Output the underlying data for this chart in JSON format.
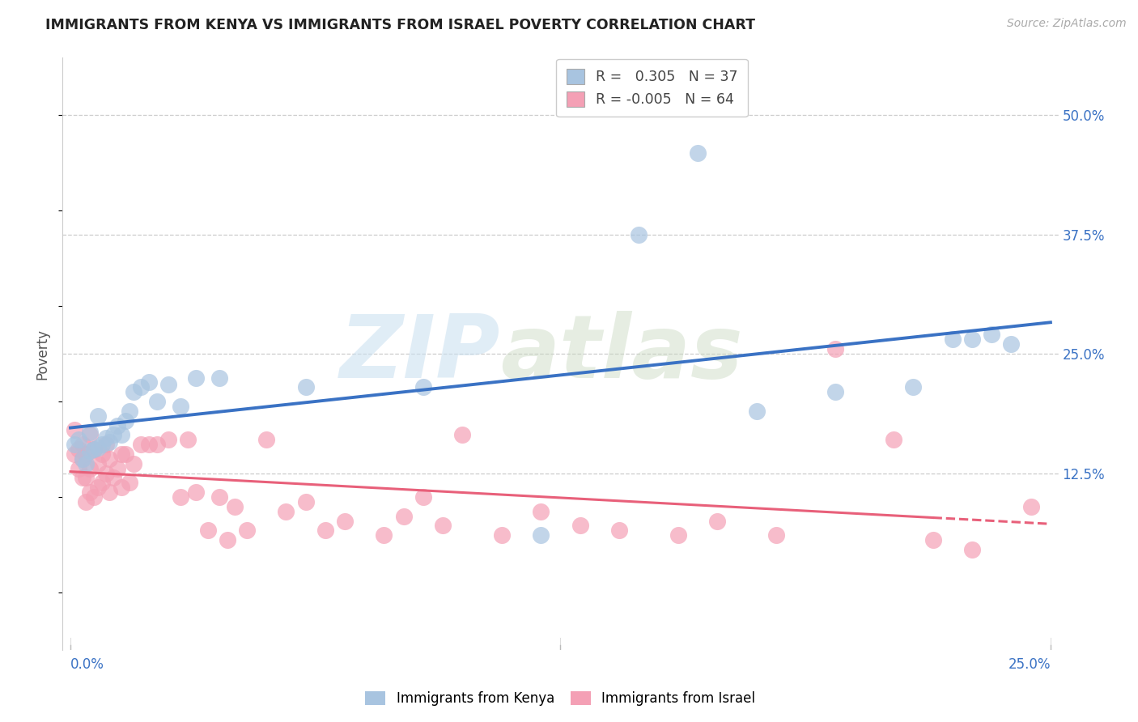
{
  "title": "IMMIGRANTS FROM KENYA VS IMMIGRANTS FROM ISRAEL POVERTY CORRELATION CHART",
  "source": "Source: ZipAtlas.com",
  "ylabel": "Poverty",
  "ytick_labels": [
    "50.0%",
    "37.5%",
    "25.0%",
    "12.5%"
  ],
  "ytick_values": [
    0.5,
    0.375,
    0.25,
    0.125
  ],
  "xlim": [
    0.0,
    0.25
  ],
  "ylim": [
    -0.06,
    0.56
  ],
  "legend_r_kenya": " 0.305",
  "legend_n_kenya": "37",
  "legend_r_israel": "-0.005",
  "legend_n_israel": "64",
  "kenya_color": "#a8c4e0",
  "israel_color": "#f4a0b5",
  "kenya_line_color": "#3a72c4",
  "israel_line_color": "#e8607a",
  "background_color": "#ffffff",
  "grid_color": "#cccccc",
  "kenya_x": [
    0.001,
    0.002,
    0.003,
    0.004,
    0.005,
    0.005,
    0.006,
    0.007,
    0.007,
    0.008,
    0.009,
    0.01,
    0.011,
    0.012,
    0.013,
    0.014,
    0.015,
    0.016,
    0.018,
    0.02,
    0.022,
    0.025,
    0.028,
    0.032,
    0.038,
    0.06,
    0.09,
    0.12,
    0.145,
    0.16,
    0.175,
    0.195,
    0.215,
    0.225,
    0.23,
    0.235,
    0.24
  ],
  "kenya_y": [
    0.155,
    0.16,
    0.14,
    0.135,
    0.148,
    0.168,
    0.15,
    0.152,
    0.185,
    0.155,
    0.162,
    0.158,
    0.165,
    0.175,
    0.165,
    0.18,
    0.19,
    0.21,
    0.215,
    0.22,
    0.2,
    0.218,
    0.195,
    0.225,
    0.225,
    0.215,
    0.215,
    0.06,
    0.375,
    0.46,
    0.19,
    0.21,
    0.215,
    0.265,
    0.265,
    0.27,
    0.26
  ],
  "israel_x": [
    0.001,
    0.001,
    0.002,
    0.002,
    0.003,
    0.003,
    0.003,
    0.004,
    0.004,
    0.004,
    0.005,
    0.005,
    0.005,
    0.006,
    0.006,
    0.007,
    0.007,
    0.008,
    0.008,
    0.009,
    0.009,
    0.01,
    0.01,
    0.011,
    0.012,
    0.013,
    0.013,
    0.014,
    0.015,
    0.016,
    0.018,
    0.02,
    0.022,
    0.025,
    0.028,
    0.03,
    0.032,
    0.035,
    0.038,
    0.04,
    0.042,
    0.045,
    0.05,
    0.055,
    0.06,
    0.065,
    0.07,
    0.08,
    0.085,
    0.09,
    0.095,
    0.1,
    0.11,
    0.12,
    0.13,
    0.14,
    0.155,
    0.165,
    0.18,
    0.195,
    0.21,
    0.22,
    0.23,
    0.245
  ],
  "israel_y": [
    0.145,
    0.17,
    0.13,
    0.15,
    0.12,
    0.14,
    0.155,
    0.095,
    0.12,
    0.145,
    0.105,
    0.13,
    0.165,
    0.1,
    0.15,
    0.11,
    0.135,
    0.115,
    0.145,
    0.125,
    0.155,
    0.105,
    0.14,
    0.12,
    0.13,
    0.11,
    0.145,
    0.145,
    0.115,
    0.135,
    0.155,
    0.155,
    0.155,
    0.16,
    0.1,
    0.16,
    0.105,
    0.065,
    0.1,
    0.055,
    0.09,
    0.065,
    0.16,
    0.085,
    0.095,
    0.065,
    0.075,
    0.06,
    0.08,
    0.1,
    0.07,
    0.165,
    0.06,
    0.085,
    0.07,
    0.065,
    0.06,
    0.075,
    0.06,
    0.255,
    0.16,
    0.055,
    0.045,
    0.09
  ]
}
